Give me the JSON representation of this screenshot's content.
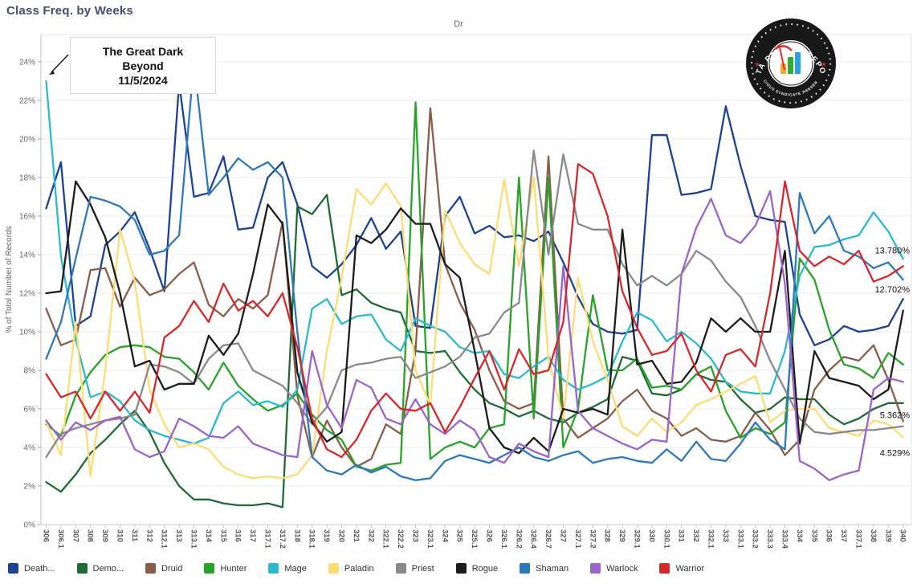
{
  "header": {
    "title": "Class Freq. by Weeks",
    "top_label": "Dr"
  },
  "annotation": {
    "text": "The Great Dark Beyond",
    "date": "11/5/2024"
  },
  "logo": {
    "top_text": "DATA REAPER REPORT",
    "bottom_text": "VICIOUS SYNDICATE PRESENTS",
    "star": "★",
    "bar_colors": [
      "#f0a92d",
      "#37a93c",
      "#2b9fe8"
    ],
    "scythe_color": "#e03131"
  },
  "y_axis": {
    "title": "% of Total Number of Records",
    "tick_labels": [
      "0%",
      "2%",
      "4%",
      "6%",
      "8%",
      "10%",
      "12%",
      "14%",
      "16%",
      "18%",
      "20%",
      "22%",
      "24%"
    ]
  },
  "chart_data": {
    "type": "line",
    "title": "Class Freq. by Weeks",
    "xlabel": "",
    "ylabel": "% of Total Number of Records",
    "ylim": [
      0,
      24
    ],
    "grid": "horizontal",
    "legend_position": "bottom",
    "x_labels": [
      "306",
      "306.1",
      "307",
      "308",
      "309",
      "310",
      "311",
      "312",
      "312.1",
      "313",
      "313.1",
      "314",
      "315",
      "316",
      "317",
      "317.1",
      "317.2",
      "318",
      "318.1",
      "319",
      "320",
      "321",
      "322",
      "322.1",
      "322.2",
      "323",
      "323.1",
      "324",
      "325",
      "325.1",
      "326",
      "326.1",
      "326.2",
      "326.4",
      "326.7",
      "327",
      "327.1",
      "327.2",
      "328",
      "329",
      "329.1",
      "330",
      "330.1",
      "331",
      "332",
      "332.1",
      "333",
      "333.1",
      "333.2",
      "333.3",
      "333.4",
      "334",
      "335",
      "336",
      "337",
      "337.1",
      "338",
      "339",
      "340"
    ],
    "series": [
      {
        "name": "Death...",
        "color": "#1b4295",
        "values": [
          16.4,
          18.8,
          10.3,
          10.8,
          14.5,
          15.2,
          16.2,
          14.3,
          12.1,
          22.9,
          17.0,
          17.2,
          19.1,
          15.3,
          15.4,
          18.0,
          18.8,
          16.6,
          13.4,
          12.8,
          13.5,
          14.5,
          15.9,
          14.3,
          15.2,
          10.3,
          10.2,
          16.0,
          17.0,
          15.1,
          15.5,
          14.9,
          15.0,
          14.7,
          15.2,
          13.6,
          11.8,
          10.4,
          10.0,
          9.9,
          10.1,
          20.2,
          20.2,
          17.1,
          17.2,
          17.4,
          21.7,
          18.6,
          16.0,
          15.8,
          15.7,
          10.9,
          9.3,
          9.6,
          10.3,
          10.0,
          10.1,
          10.3,
          11.7
        ]
      },
      {
        "name": "Demo...",
        "color": "#1e6b34",
        "values": [
          2.2,
          1.7,
          2.6,
          3.7,
          4.4,
          5.2,
          5.9,
          4.8,
          3.2,
          2.0,
          1.3,
          1.3,
          1.1,
          1.0,
          1.0,
          1.1,
          0.9,
          16.5,
          16.1,
          17.1,
          11.9,
          12.2,
          11.5,
          11.2,
          11.0,
          9.0,
          8.9,
          9.0,
          7.9,
          7.0,
          6.3,
          6.0,
          5.6,
          5.9,
          5.5,
          5.3,
          5.8,
          6.1,
          6.5,
          8.7,
          8.5,
          6.8,
          6.7,
          7.0,
          7.8,
          7.5,
          7.4,
          6.5,
          5.8,
          6.0,
          6.6,
          6.5,
          6.5,
          5.7,
          5.2,
          5.5,
          6.0,
          6.3,
          6.3
        ]
      },
      {
        "name": "Druid",
        "color": "#8a5c4a",
        "values": [
          11.2,
          9.3,
          9.6,
          13.2,
          13.3,
          11.3,
          12.8,
          11.9,
          12.2,
          13.0,
          13.6,
          11.4,
          10.8,
          11.7,
          11.2,
          11.9,
          15.7,
          6.7,
          3.5,
          5.4,
          4.0,
          3.0,
          3.4,
          5.2,
          4.7,
          9.0,
          21.6,
          13.5,
          11.5,
          10.1,
          8.0,
          6.4,
          6.0,
          6.3,
          19.1,
          5.5,
          4.5,
          5.0,
          5.5,
          6.4,
          7.0,
          5.9,
          5.5,
          4.6,
          5.0,
          4.4,
          4.3,
          4.6,
          5.8,
          4.9,
          3.6,
          4.4,
          7.0,
          8.0,
          8.7,
          8.5,
          9.3,
          7.5,
          5.36
        ]
      },
      {
        "name": "Hunter",
        "color": "#27a327",
        "values": [
          5.2,
          4.6,
          6.7,
          7.9,
          8.8,
          9.2,
          9.3,
          9.2,
          8.7,
          8.6,
          7.9,
          7.0,
          8.4,
          7.2,
          6.5,
          5.9,
          6.2,
          6.8,
          5.7,
          4.9,
          4.4,
          3.0,
          2.8,
          3.1,
          3.2,
          21.9,
          3.4,
          4.0,
          4.3,
          4.0,
          5.0,
          5.2,
          18.0,
          5.5,
          18.0,
          4.0,
          6.0,
          11.9,
          8.0,
          8.0,
          8.6,
          7.1,
          7.2,
          7.0,
          7.8,
          8.2,
          5.9,
          4.5,
          5.0,
          4.7,
          5.3,
          13.8,
          12.7,
          10.1,
          8.3,
          8.1,
          7.6,
          8.9,
          8.3
        ]
      },
      {
        "name": "Mage",
        "color": "#2cb9cd",
        "values": [
          23.0,
          13.9,
          9.6,
          6.6,
          6.9,
          6.4,
          5.4,
          4.9,
          4.6,
          4.4,
          4.2,
          4.5,
          6.3,
          6.9,
          6.2,
          6.4,
          6.1,
          7.0,
          11.2,
          11.7,
          10.4,
          10.8,
          10.9,
          9.6,
          9.0,
          10.7,
          10.3,
          10.0,
          9.2,
          8.9,
          9.0,
          7.8,
          7.6,
          8.2,
          8.7,
          7.5,
          7.0,
          7.3,
          7.7,
          9.5,
          11.0,
          10.6,
          9.5,
          10.0,
          9.4,
          8.6,
          7.4,
          6.9,
          6.8,
          6.8,
          9.0,
          12.9,
          14.4,
          14.5,
          14.8,
          15.0,
          16.2,
          15.2,
          13.78
        ]
      },
      {
        "name": "Paladin",
        "color": "#fcdc73",
        "values": [
          5.3,
          3.6,
          10.5,
          2.5,
          8.0,
          15.3,
          12.6,
          7.0,
          5.2,
          4.0,
          4.2,
          3.9,
          3.0,
          2.6,
          2.4,
          2.5,
          2.4,
          2.6,
          3.6,
          9.0,
          12.8,
          17.4,
          16.6,
          17.7,
          16.5,
          8.0,
          6.2,
          16.3,
          14.6,
          13.5,
          13.0,
          17.9,
          13.4,
          18.0,
          8.6,
          5.5,
          12.8,
          9.5,
          7.5,
          5.1,
          4.6,
          5.5,
          4.8,
          5.3,
          6.2,
          6.5,
          6.9,
          7.3,
          7.7,
          5.3,
          5.9,
          6.0,
          6.0,
          5.0,
          4.8,
          4.6,
          5.4,
          5.2,
          4.53
        ]
      },
      {
        "name": "Priest",
        "color": "#898989",
        "values": [
          3.5,
          4.7,
          5.0,
          5.2,
          5.4,
          5.5,
          5.7,
          8.3,
          8.2,
          7.9,
          7.3,
          8.6,
          9.3,
          9.4,
          8.0,
          7.6,
          7.2,
          6.3,
          5.2,
          6.1,
          8.0,
          8.3,
          8.4,
          8.6,
          8.7,
          7.6,
          7.9,
          8.2,
          8.7,
          9.7,
          9.9,
          11.0,
          11.5,
          19.4,
          14.0,
          19.2,
          15.6,
          15.3,
          15.3,
          13.5,
          12.4,
          12.9,
          12.4,
          13.0,
          14.2,
          13.7,
          12.6,
          11.8,
          10.3,
          8.5,
          7.0,
          5.5,
          4.8,
          4.7,
          4.8,
          4.9,
          4.9,
          5.0,
          5.1
        ]
      },
      {
        "name": "Rogue",
        "color": "#1c1c1c",
        "values": [
          12.0,
          12.1,
          17.8,
          16.6,
          14.9,
          12.0,
          8.2,
          8.5,
          7.0,
          7.3,
          7.3,
          9.8,
          8.8,
          9.9,
          13.0,
          16.6,
          15.6,
          7.9,
          5.3,
          4.3,
          4.8,
          15.0,
          14.6,
          15.3,
          16.4,
          15.6,
          15.6,
          13.5,
          12.8,
          9.0,
          5.0,
          4.0,
          3.7,
          4.5,
          3.8,
          6.0,
          5.8,
          6.0,
          5.7,
          15.3,
          8.3,
          8.5,
          7.3,
          7.4,
          8.4,
          10.7,
          10.0,
          10.7,
          10.0,
          10.0,
          14.2,
          4.2,
          9.0,
          7.6,
          7.4,
          7.2,
          6.5,
          7.0,
          11.1
        ]
      },
      {
        "name": "Shaman",
        "color": "#2e79ba",
        "values": [
          8.6,
          10.5,
          13.8,
          17.0,
          16.8,
          16.5,
          15.8,
          14.0,
          14.2,
          15.0,
          24.0,
          17.1,
          18.0,
          19.0,
          18.4,
          18.8,
          18.0,
          10.0,
          3.5,
          2.8,
          2.6,
          3.1,
          2.7,
          3.0,
          2.5,
          2.3,
          2.4,
          3.3,
          3.6,
          3.4,
          3.2,
          3.6,
          4.0,
          3.5,
          3.3,
          3.6,
          3.8,
          3.2,
          3.4,
          3.5,
          3.3,
          3.2,
          3.9,
          3.3,
          4.3,
          3.4,
          3.3,
          4.2,
          5.3,
          4.4,
          3.9,
          17.2,
          15.1,
          16.0,
          14.2,
          13.9,
          13.3,
          13.6,
          12.702
        ]
      },
      {
        "name": "Warlock",
        "color": "#9a64cb",
        "values": [
          5.4,
          4.4,
          5.3,
          4.9,
          5.4,
          5.6,
          3.9,
          3.5,
          3.8,
          5.5,
          5.1,
          4.6,
          4.5,
          5.1,
          4.2,
          3.9,
          3.6,
          3.5,
          9.0,
          6.2,
          5.0,
          7.5,
          7.1,
          5.5,
          5.2,
          6.5,
          5.2,
          4.7,
          5.4,
          4.9,
          3.5,
          3.2,
          4.2,
          3.8,
          3.5,
          13.4,
          5.9,
          5.0,
          4.6,
          4.2,
          3.9,
          4.4,
          4.3,
          13.0,
          15.4,
          16.9,
          15.0,
          14.6,
          15.5,
          17.3,
          12.5,
          3.3,
          2.9,
          2.3,
          2.6,
          2.8,
          7.0,
          7.6,
          7.4
        ]
      },
      {
        "name": "Warrior",
        "color": "#d62729",
        "values": [
          7.8,
          6.6,
          6.9,
          5.5,
          6.9,
          5.9,
          6.9,
          5.8,
          9.7,
          10.3,
          11.6,
          10.5,
          12.5,
          11.1,
          11.6,
          10.8,
          12.0,
          9.2,
          5.5,
          3.9,
          3.5,
          4.4,
          5.9,
          6.8,
          6.0,
          5.9,
          6.3,
          4.8,
          6.1,
          7.6,
          9.0,
          7.0,
          9.1,
          7.8,
          8.0,
          10.5,
          18.7,
          18.2,
          16.0,
          12.1,
          10.2,
          8.8,
          9.0,
          9.9,
          8.0,
          6.9,
          8.8,
          9.1,
          8.2,
          12.0,
          17.8,
          14.2,
          13.4,
          13.9,
          13.5,
          14.2,
          12.6,
          12.9,
          13.4
        ]
      }
    ],
    "end_labels": [
      {
        "text": "13.780%",
        "series": "Mage"
      },
      {
        "text": "12.702%",
        "series": "Shaman"
      },
      {
        "text": "5.362%",
        "series": "Druid"
      },
      {
        "text": "4.529%",
        "series": "Paladin"
      }
    ]
  },
  "legend": {
    "items": [
      {
        "label": "Death...",
        "color": "#1b4295"
      },
      {
        "label": "Demo...",
        "color": "#1e6b34"
      },
      {
        "label": "Druid",
        "color": "#8a5c4a"
      },
      {
        "label": "Hunter",
        "color": "#27a327"
      },
      {
        "label": "Mage",
        "color": "#2cb9cd"
      },
      {
        "label": "Paladin",
        "color": "#fcdc73"
      },
      {
        "label": "Priest",
        "color": "#898989"
      },
      {
        "label": "Rogue",
        "color": "#1c1c1c"
      },
      {
        "label": "Shaman",
        "color": "#2e79ba"
      },
      {
        "label": "Warlock",
        "color": "#9a64cb"
      },
      {
        "label": "Warrior",
        "color": "#d62729"
      }
    ]
  }
}
